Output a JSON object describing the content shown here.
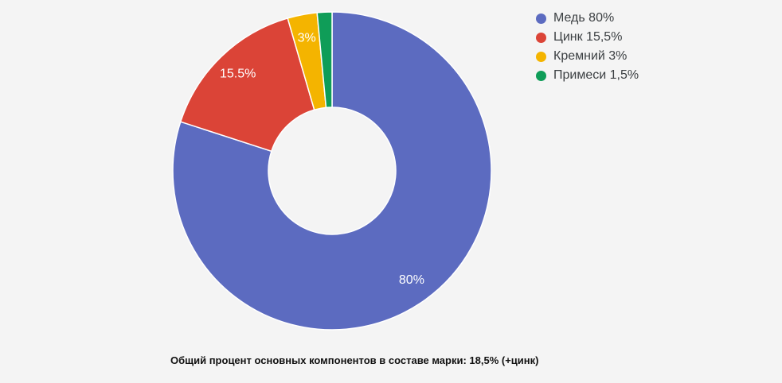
{
  "page": {
    "background": "#f4f4f4"
  },
  "chart_data": {
    "type": "pie",
    "subtype": "donut",
    "inner_radius_ratio": 0.4,
    "start_angle_deg": 0,
    "direction": "clockwise",
    "legend_position": "right",
    "grid": false,
    "title": "",
    "categories": [
      "Медь",
      "Цинк",
      "Кремний",
      "Примеси"
    ],
    "values": [
      80,
      15.5,
      3,
      1.5
    ],
    "unit": "%",
    "colors": [
      "#5c6bc0",
      "#db4437",
      "#f4b400",
      "#0f9d58"
    ],
    "slice_labels": [
      "80%",
      "15.5%",
      "3%",
      ""
    ],
    "slice_label_color": "#ffffff",
    "slice_separator_color": "#ffffff",
    "legend": [
      {
        "label": "Медь 80%",
        "color": "#5c6bc0"
      },
      {
        "label": "Цинк 15,5%",
        "color": "#db4437"
      },
      {
        "label": "Кремний 3%",
        "color": "#f4b400"
      },
      {
        "label": "Примеси 1,5%",
        "color": "#0f9d58"
      }
    ],
    "caption": "Общий процент основных компонентов в составе марки: 18,5% (+цинк)"
  }
}
